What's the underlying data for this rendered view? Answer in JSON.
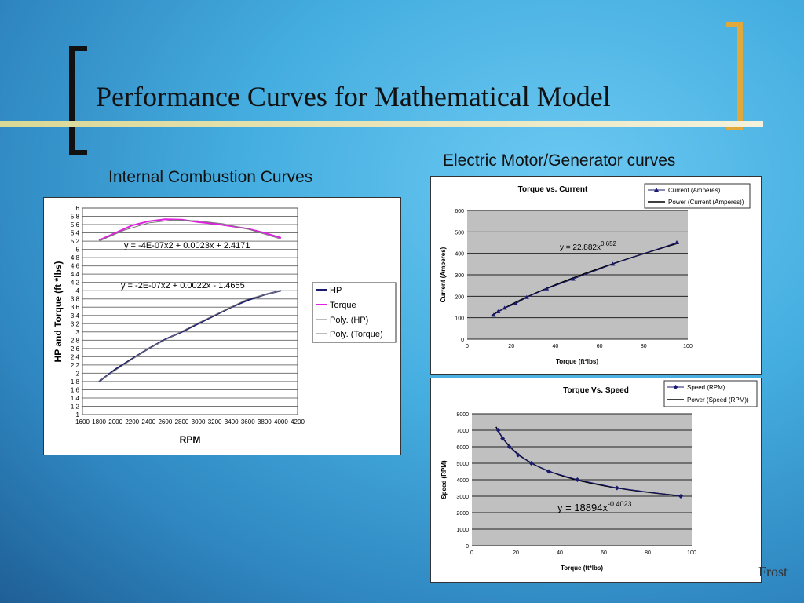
{
  "slide": {
    "title": "Performance Curves for Mathematical Model",
    "left_subtitle": "Internal Combustion Curves",
    "right_subtitle": "Electric Motor/Generator curves",
    "footer": "Frost"
  },
  "chart_data": [
    {
      "type": "line",
      "title": "",
      "xlabel": "RPM",
      "ylabel": "HP and Torque (ft *lbs)",
      "xlim": [
        1600,
        4200
      ],
      "ylim": [
        1,
        6
      ],
      "x_ticks": [
        "1600",
        "1800",
        "2000",
        "2200",
        "2400",
        "2600",
        "2800",
        "3000",
        "3200",
        "3400",
        "3600",
        "3800",
        "4000",
        "4200"
      ],
      "y_ticks": [
        "1",
        "1.2",
        "1.4",
        "1.6",
        "1.8",
        "2",
        "2.2",
        "2.4",
        "2.6",
        "2.8",
        "3",
        "3.2",
        "3.4",
        "3.6",
        "3.8",
        "4",
        "4.2",
        "4.4",
        "4.6",
        "4.8",
        "5",
        "5.2",
        "5.4",
        "5.6",
        "5.8",
        "6"
      ],
      "legend": [
        "HP",
        "Torque",
        "Poly. (HP)",
        "Poly. (Torque)"
      ],
      "legend_position": "right",
      "grid": true,
      "annotations": [
        "y = -4E-07x2 + 0.0023x + 2.4171",
        "y = -2E-07x2 + 0.0022x - 1.4655"
      ],
      "series": [
        {
          "name": "HP",
          "color": "#1a1a6e",
          "x": [
            1800,
            2000,
            2200,
            2400,
            2600,
            2800,
            3000,
            3200,
            3400,
            3600,
            3800,
            4000
          ],
          "values": [
            1.8,
            2.1,
            2.35,
            2.6,
            2.82,
            3.0,
            3.2,
            3.4,
            3.6,
            3.77,
            3.9,
            4.0
          ]
        },
        {
          "name": "Torque",
          "color": "#e020e0",
          "x": [
            1800,
            2000,
            2200,
            2400,
            2600,
            2800,
            3000,
            3200,
            3400,
            3600,
            3800,
            4000
          ],
          "values": [
            5.22,
            5.4,
            5.58,
            5.68,
            5.73,
            5.72,
            5.66,
            5.62,
            5.56,
            5.5,
            5.4,
            5.28
          ]
        },
        {
          "name": "Poly. (HP)",
          "color": "#777777",
          "x": [
            1800,
            2400,
            3000,
            3600,
            4000
          ],
          "values": [
            1.81,
            2.6,
            3.22,
            3.8,
            4.0
          ]
        },
        {
          "name": "Poly. (Torque)",
          "color": "#777777",
          "x": [
            1800,
            2100,
            2400,
            2700,
            3000,
            3300,
            3600,
            3900,
            4000
          ],
          "values": [
            5.2,
            5.46,
            5.64,
            5.71,
            5.69,
            5.62,
            5.49,
            5.31,
            5.25
          ]
        }
      ]
    },
    {
      "type": "scatter",
      "title": "Torque vs. Current",
      "xlabel": "Torque (ft*lbs)",
      "ylabel": "Current (Amperes)",
      "xlim": [
        0,
        100
      ],
      "ylim": [
        0,
        600
      ],
      "x_ticks": [
        "0",
        "20",
        "40",
        "60",
        "80",
        "100"
      ],
      "y_ticks": [
        "0",
        "100",
        "200",
        "300",
        "400",
        "500",
        "600"
      ],
      "legend": [
        "Current (Amperes)",
        "Power (Current (Amperes))"
      ],
      "legend_position": "top-right",
      "grid": true,
      "annotation": "y = 22.882x",
      "annotation_exp": "0.652",
      "series": [
        {
          "name": "Current (Amperes)",
          "x": [
            12,
            14,
            17,
            22,
            27,
            36,
            48,
            66,
            95
          ],
          "values": [
            112,
            128,
            145,
            165,
            195,
            235,
            280,
            350,
            450
          ]
        }
      ]
    },
    {
      "type": "scatter",
      "title": "Torque Vs. Speed",
      "xlabel": "Torque (ft*lbs)",
      "ylabel": "Speed (RPM)",
      "xlim": [
        0,
        100
      ],
      "ylim": [
        0,
        8000
      ],
      "x_ticks": [
        "0",
        "20",
        "40",
        "60",
        "80",
        "100"
      ],
      "y_ticks": [
        "0",
        "1000",
        "2000",
        "3000",
        "4000",
        "5000",
        "6000",
        "7000",
        "8000"
      ],
      "legend": [
        "Speed (RPM)",
        "Power (Speed (RPM))"
      ],
      "legend_position": "top-right",
      "grid": true,
      "annotation": "y = 18894x",
      "annotation_exp": "-0.4023",
      "series": [
        {
          "name": "Speed (RPM)",
          "x": [
            12,
            14,
            17,
            21,
            27,
            35,
            48,
            66,
            95
          ],
          "values": [
            7000,
            6500,
            6000,
            5500,
            5000,
            4500,
            4000,
            3500,
            3000
          ]
        }
      ]
    }
  ]
}
